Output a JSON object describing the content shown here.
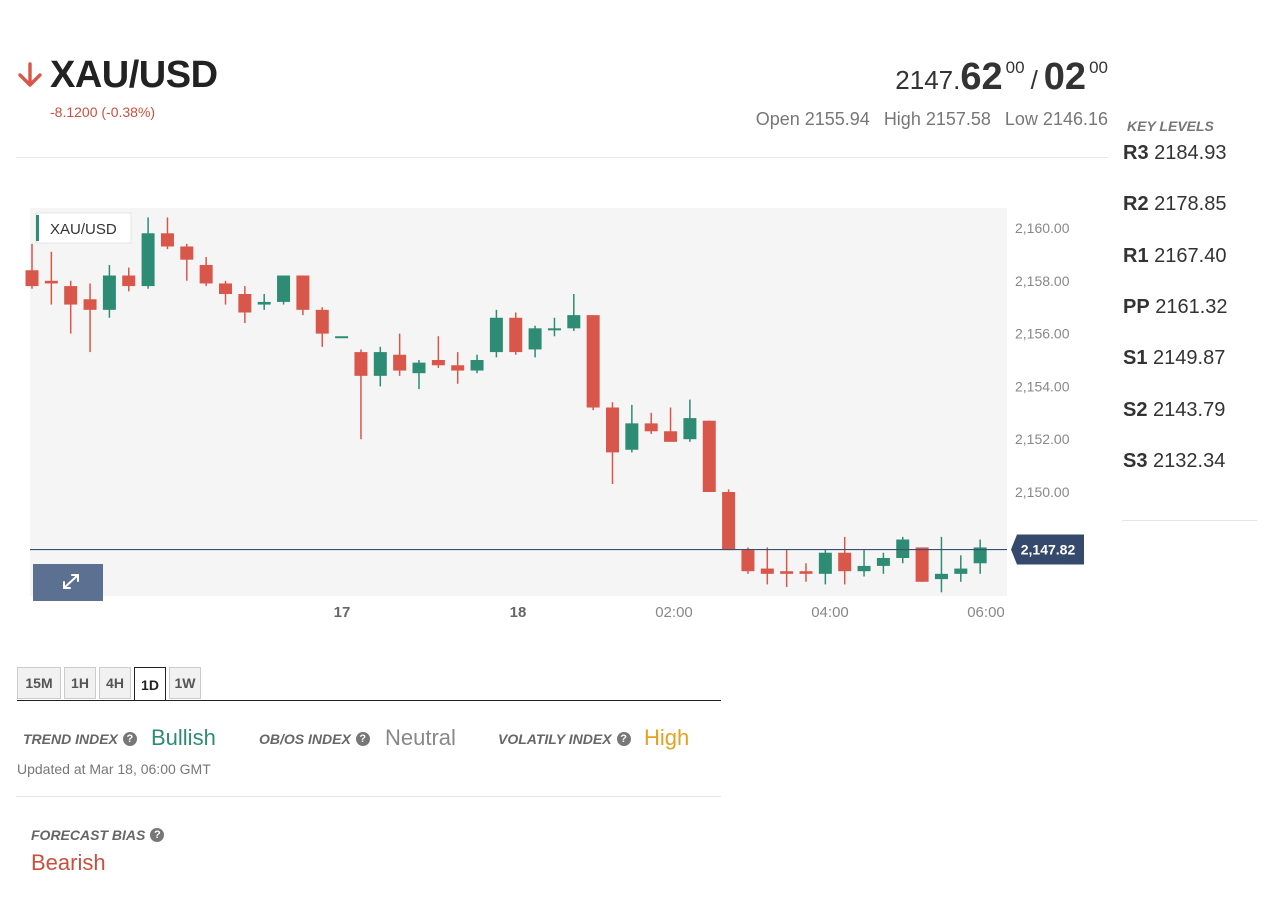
{
  "instrument": {
    "symbol": "XAU/USD",
    "direction_icon": "arrow-down-icon",
    "change": "-8.1200 (-0.38%)",
    "bid_prefix": "2147.",
    "bid_big": "62",
    "bid_sup": "00",
    "separator": "/",
    "ask_big": "02",
    "ask_sup": "00",
    "open": "Open 2155.94",
    "high": "High 2157.58",
    "low": "Low 2146.16"
  },
  "key_levels": {
    "title": "KEY LEVELS",
    "items": [
      {
        "label": "R3",
        "value": "2184.93"
      },
      {
        "label": "R2",
        "value": "2178.85"
      },
      {
        "label": "R1",
        "value": "2167.40"
      },
      {
        "label": "PP",
        "value": "2161.32"
      },
      {
        "label": "S1",
        "value": "2149.87"
      },
      {
        "label": "S2",
        "value": "2143.79"
      },
      {
        "label": "S3",
        "value": "2132.34"
      }
    ]
  },
  "chart_data": {
    "type": "candlestick",
    "legend": "XAU/USD",
    "ylim": [
      2146.0,
      2160.8
    ],
    "y_ticks": [
      "2,160.00",
      "2,158.00",
      "2,156.00",
      "2,154.00",
      "2,152.00",
      "2,150.00"
    ],
    "y_tick_values": [
      2160,
      2158,
      2156,
      2154,
      2152,
      2150
    ],
    "x_ticks": [
      "17",
      "18",
      "02:00",
      "04:00",
      "06:00"
    ],
    "x_tick_bold": [
      true,
      true,
      false,
      false,
      false
    ],
    "last_price": 2147.82,
    "last_price_label": "2,147.82",
    "colors": {
      "up": "#2e8b74",
      "down": "#d9574a",
      "price_line": "#3b4f6e"
    },
    "candles": [
      {
        "o": 2158.4,
        "h": 2159.4,
        "l": 2157.7,
        "c": 2157.8
      },
      {
        "o": 2158.0,
        "h": 2159.1,
        "l": 2157.1,
        "c": 2157.9
      },
      {
        "o": 2157.8,
        "h": 2158.0,
        "l": 2156.0,
        "c": 2157.1
      },
      {
        "o": 2157.3,
        "h": 2157.9,
        "l": 2155.3,
        "c": 2156.9
      },
      {
        "o": 2156.9,
        "h": 2158.6,
        "l": 2156.6,
        "c": 2158.2
      },
      {
        "o": 2158.2,
        "h": 2158.5,
        "l": 2157.6,
        "c": 2157.8
      },
      {
        "o": 2157.8,
        "h": 2160.4,
        "l": 2157.7,
        "c": 2159.8
      },
      {
        "o": 2159.8,
        "h": 2160.4,
        "l": 2159.2,
        "c": 2159.3
      },
      {
        "o": 2159.3,
        "h": 2159.4,
        "l": 2158.0,
        "c": 2158.8
      },
      {
        "o": 2158.6,
        "h": 2158.9,
        "l": 2157.8,
        "c": 2157.9
      },
      {
        "o": 2157.9,
        "h": 2158.0,
        "l": 2157.1,
        "c": 2157.5
      },
      {
        "o": 2157.5,
        "h": 2157.8,
        "l": 2156.4,
        "c": 2156.8
      },
      {
        "o": 2157.1,
        "h": 2157.5,
        "l": 2156.9,
        "c": 2157.2
      },
      {
        "o": 2157.2,
        "h": 2158.2,
        "l": 2157.1,
        "c": 2158.2
      },
      {
        "o": 2158.2,
        "h": 2158.2,
        "l": 2156.7,
        "c": 2156.9
      },
      {
        "o": 2156.9,
        "h": 2157.0,
        "l": 2155.5,
        "c": 2156.0
      },
      {
        "o": 2155.9,
        "h": 2155.9,
        "l": 2155.9,
        "c": 2155.9
      },
      {
        "o": 2155.3,
        "h": 2155.4,
        "l": 2152.0,
        "c": 2154.4
      },
      {
        "o": 2154.4,
        "h": 2155.5,
        "l": 2154.0,
        "c": 2155.3
      },
      {
        "o": 2155.2,
        "h": 2156.0,
        "l": 2154.4,
        "c": 2154.6
      },
      {
        "o": 2154.5,
        "h": 2155.0,
        "l": 2153.9,
        "c": 2154.9
      },
      {
        "o": 2155.0,
        "h": 2155.9,
        "l": 2154.7,
        "c": 2154.8
      },
      {
        "o": 2154.8,
        "h": 2155.3,
        "l": 2154.1,
        "c": 2154.6
      },
      {
        "o": 2154.6,
        "h": 2155.2,
        "l": 2154.5,
        "c": 2155.0
      },
      {
        "o": 2155.3,
        "h": 2156.9,
        "l": 2155.1,
        "c": 2156.6
      },
      {
        "o": 2156.6,
        "h": 2156.8,
        "l": 2155.2,
        "c": 2155.3
      },
      {
        "o": 2155.4,
        "h": 2156.3,
        "l": 2155.1,
        "c": 2156.2
      },
      {
        "o": 2156.2,
        "h": 2156.6,
        "l": 2155.9,
        "c": 2156.2
      },
      {
        "o": 2156.2,
        "h": 2157.5,
        "l": 2156.1,
        "c": 2156.7
      },
      {
        "o": 2156.7,
        "h": 2156.7,
        "l": 2153.1,
        "c": 2153.2
      },
      {
        "o": 2153.2,
        "h": 2153.4,
        "l": 2150.3,
        "c": 2151.5
      },
      {
        "o": 2151.6,
        "h": 2153.3,
        "l": 2151.5,
        "c": 2152.6
      },
      {
        "o": 2152.6,
        "h": 2153.0,
        "l": 2152.2,
        "c": 2152.3
      },
      {
        "o": 2152.3,
        "h": 2153.2,
        "l": 2151.9,
        "c": 2151.9
      },
      {
        "o": 2152.0,
        "h": 2153.5,
        "l": 2151.9,
        "c": 2152.8
      },
      {
        "o": 2152.7,
        "h": 2152.7,
        "l": 2150.0,
        "c": 2150.0
      },
      {
        "o": 2150.0,
        "h": 2150.1,
        "l": 2147.8,
        "c": 2147.8
      },
      {
        "o": 2147.8,
        "h": 2147.9,
        "l": 2146.9,
        "c": 2147.0
      },
      {
        "o": 2147.1,
        "h": 2147.9,
        "l": 2146.5,
        "c": 2146.9
      },
      {
        "o": 2147.0,
        "h": 2147.8,
        "l": 2146.4,
        "c": 2146.9
      },
      {
        "o": 2147.0,
        "h": 2147.3,
        "l": 2146.6,
        "c": 2146.9
      },
      {
        "o": 2146.9,
        "h": 2147.8,
        "l": 2146.5,
        "c": 2147.7
      },
      {
        "o": 2147.7,
        "h": 2148.3,
        "l": 2146.5,
        "c": 2147.0
      },
      {
        "o": 2147.0,
        "h": 2147.8,
        "l": 2146.8,
        "c": 2147.2
      },
      {
        "o": 2147.2,
        "h": 2147.7,
        "l": 2146.9,
        "c": 2147.5
      },
      {
        "o": 2147.5,
        "h": 2148.3,
        "l": 2147.3,
        "c": 2148.2
      },
      {
        "o": 2147.9,
        "h": 2147.9,
        "l": 2146.6,
        "c": 2146.6
      },
      {
        "o": 2146.7,
        "h": 2148.3,
        "l": 2146.2,
        "c": 2146.9
      },
      {
        "o": 2146.9,
        "h": 2147.6,
        "l": 2146.6,
        "c": 2147.1
      },
      {
        "o": 2147.3,
        "h": 2148.2,
        "l": 2146.9,
        "c": 2147.9
      }
    ]
  },
  "timeframes": [
    "15M",
    "1H",
    "4H",
    "1D",
    "1W"
  ],
  "active_timeframe": "1D",
  "indices": {
    "trend_label": "TREND INDEX",
    "trend_value": "Bullish",
    "obos_label": "OB/OS INDEX",
    "obos_value": "Neutral",
    "volatility_label": "VOLATILY INDEX",
    "volatility_value": "High",
    "help_icon": "question-circle-icon",
    "colors": {
      "bullish": "#2e8b74",
      "neutral": "#888888",
      "high": "#e6a21e"
    }
  },
  "updated": "Updated at Mar 18, 06:00 GMT",
  "forecast": {
    "label": "FORECAST BIAS",
    "value": "Bearish"
  }
}
